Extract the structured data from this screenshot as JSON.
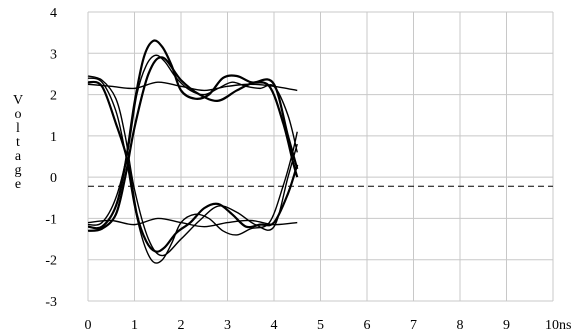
{
  "chart_data": {
    "type": "line",
    "title": "",
    "xlabel": "",
    "ylabel": "Voltage",
    "x_unit_label": "10ns",
    "xlim": [
      0,
      10
    ],
    "ylim": [
      -3,
      4
    ],
    "x_ticks": [
      0,
      1,
      2,
      3,
      4,
      5,
      6,
      7,
      8,
      9,
      10
    ],
    "x_tick_labels": [
      "0",
      "1",
      "2",
      "3",
      "4",
      "5",
      "6",
      "7",
      "8",
      "9",
      "10ns"
    ],
    "y_ticks": [
      -3,
      -2,
      -1,
      0,
      1,
      2,
      3,
      4
    ],
    "y_tick_labels": [
      "-3",
      "-2",
      "-1",
      "0",
      "1",
      "2",
      "3",
      "4"
    ],
    "grid": true,
    "colors": {
      "grid": "#c8c8c8",
      "trace": "#000000",
      "threshold": "#000000"
    },
    "threshold": {
      "y": -0.22,
      "x_range": [
        0,
        10
      ],
      "style": "dashed"
    },
    "eye": {
      "period_start": 0,
      "period_end": 4.5,
      "crossing_x": 0.85,
      "high_level": 2.2,
      "low_level": -1.1,
      "rising_overshoot_peak": [
        1.5,
        3.3
      ],
      "falling_undershoot_peak": [
        1.5,
        -2.1
      ],
      "ringing_dip_high": [
        2.7,
        1.85
      ],
      "ringing_bump_low": [
        2.9,
        -0.65
      ]
    },
    "series": [
      {
        "x": [
          0,
          0.3,
          0.6,
          0.8,
          1.0,
          1.2,
          1.4,
          1.6,
          1.8,
          2.0,
          2.3,
          2.6,
          2.9,
          3.2,
          3.5,
          3.9,
          4.2,
          4.4,
          4.5
        ],
        "y": [
          -1.2,
          -1.2,
          -0.7,
          0.3,
          1.8,
          2.9,
          3.3,
          3.15,
          2.7,
          2.1,
          1.9,
          2.0,
          2.4,
          2.45,
          2.3,
          2.2,
          1.3,
          0.4,
          0.0
        ]
      },
      {
        "x": [
          0,
          0.3,
          0.6,
          0.85,
          1.05,
          1.25,
          1.45,
          1.65,
          1.9,
          2.2,
          2.5,
          2.8,
          3.1,
          3.4,
          3.7,
          4.0,
          4.3,
          4.5
        ],
        "y": [
          -1.15,
          -1.1,
          -0.5,
          0.6,
          2.0,
          2.7,
          2.95,
          2.8,
          2.4,
          2.1,
          2.0,
          2.15,
          2.3,
          2.2,
          2.15,
          2.2,
          1.5,
          0.6
        ]
      },
      {
        "x": [
          0,
          0.3,
          0.6,
          0.8,
          1.0,
          1.2,
          1.4,
          1.6,
          1.8,
          2.0,
          2.3,
          2.6,
          2.9,
          3.2,
          3.5,
          3.9,
          4.2,
          4.4,
          4.5
        ],
        "y": [
          2.4,
          2.3,
          1.6,
          0.6,
          -0.7,
          -1.6,
          -2.05,
          -2.0,
          -1.6,
          -1.1,
          -0.9,
          -1.0,
          -1.3,
          -1.4,
          -1.25,
          -1.1,
          -0.2,
          0.6,
          1.1
        ]
      },
      {
        "x": [
          0,
          0.3,
          0.6,
          0.85,
          1.05,
          1.25,
          1.45,
          1.65,
          1.9,
          2.2,
          2.5,
          2.8,
          3.1,
          3.4,
          3.7,
          4.0,
          4.3,
          4.5
        ],
        "y": [
          2.3,
          2.2,
          1.3,
          0.4,
          -0.9,
          -1.55,
          -1.8,
          -1.7,
          -1.35,
          -1.1,
          -0.75,
          -0.65,
          -0.9,
          -1.2,
          -1.15,
          -1.1,
          -0.4,
          0.3
        ]
      },
      {
        "x": [
          0,
          0.5,
          1.0,
          1.5,
          2.0,
          2.5,
          3.0,
          3.5,
          4.0,
          4.5
        ],
        "y": [
          2.25,
          2.2,
          2.15,
          2.3,
          2.2,
          2.1,
          2.2,
          2.25,
          2.2,
          2.1
        ]
      },
      {
        "x": [
          0,
          0.5,
          1.0,
          1.5,
          2.0,
          2.5,
          3.0,
          3.5,
          4.0,
          4.5
        ],
        "y": [
          -1.1,
          -1.05,
          -1.15,
          -1.0,
          -1.1,
          -1.2,
          -1.1,
          -1.05,
          -1.15,
          -1.1
        ]
      },
      {
        "x": [
          0,
          0.3,
          0.6,
          0.8,
          1.0,
          1.3,
          1.6,
          2.0,
          2.4,
          2.8,
          3.2,
          3.6,
          4.0,
          4.3,
          4.5
        ],
        "y": [
          -1.3,
          -1.25,
          -0.9,
          0.0,
          1.2,
          2.5,
          2.9,
          2.35,
          2.0,
          1.85,
          2.1,
          2.3,
          2.25,
          1.0,
          0.2
        ]
      },
      {
        "x": [
          0,
          0.3,
          0.6,
          0.8,
          1.0,
          1.3,
          1.6,
          2.0,
          2.4,
          2.8,
          3.2,
          3.6,
          4.0,
          4.3,
          4.5
        ],
        "y": [
          2.45,
          2.35,
          1.9,
          1.0,
          -0.3,
          -1.5,
          -1.9,
          -1.5,
          -1.05,
          -0.7,
          -0.85,
          -1.15,
          -1.2,
          0.0,
          0.8
        ]
      }
    ]
  }
}
